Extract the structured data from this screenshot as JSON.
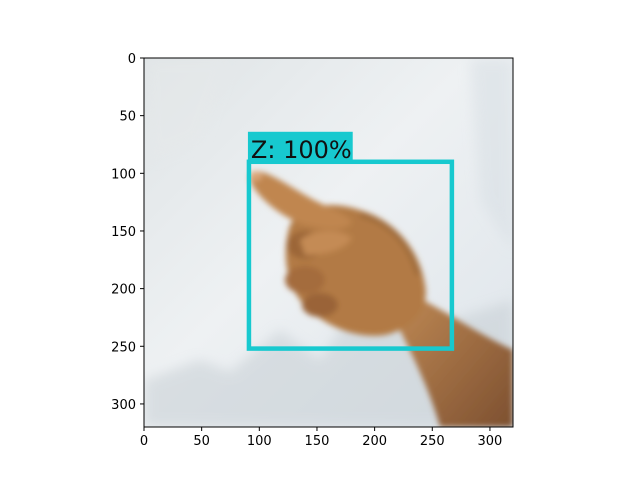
{
  "figure": {
    "image_extent": {
      "x": [
        0,
        320
      ],
      "y": [
        0,
        320
      ]
    },
    "x_axis": {
      "ticks": [
        0,
        50,
        100,
        150,
        200,
        250,
        300
      ],
      "labels": [
        "0",
        "50",
        "100",
        "150",
        "200",
        "250",
        "300"
      ]
    },
    "y_axis": {
      "ticks": [
        0,
        50,
        100,
        150,
        200,
        250,
        300
      ],
      "labels": [
        "0",
        "50",
        "100",
        "150",
        "200",
        "250",
        "300"
      ],
      "inverted": true
    }
  },
  "detection": {
    "label": "Z: 100%",
    "class": "Z",
    "confidence": "100%",
    "box": {
      "x_min": 91,
      "y_min": 90,
      "x_max": 267,
      "y_max": 252
    },
    "color": "#17c9cf"
  },
  "scene": {
    "background_color": "#e7ecef",
    "skin_color": "#b27a45",
    "skin_shadow": "#8a5a31"
  }
}
